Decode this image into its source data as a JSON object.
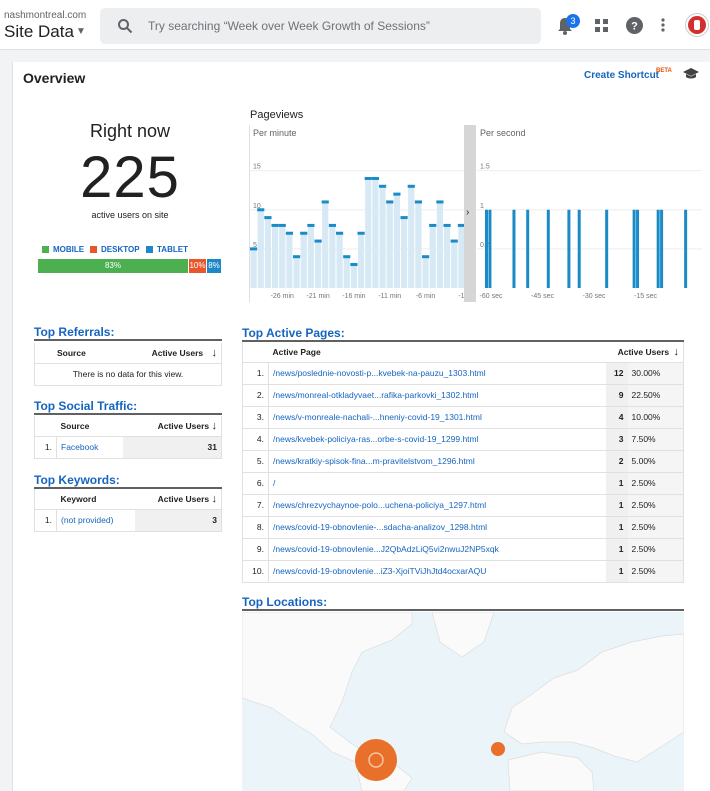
{
  "header": {
    "site_url": "nashmontreal.com",
    "site_name": "Site Data",
    "search_placeholder": "Try searching “Week over Week Growth of Sessions”",
    "notification_count": "3"
  },
  "overview": {
    "title": "Overview",
    "create_shortcut": "Create Shortcut",
    "beta": "BETA"
  },
  "realtime": {
    "right_now": "Right now",
    "active_users": "225",
    "active_label": "active users on site",
    "legend": [
      {
        "label": "MOBILE",
        "color": "#4caf50"
      },
      {
        "label": "DESKTOP",
        "color": "#e8572a"
      },
      {
        "label": "TABLET",
        "color": "#1e88c7"
      }
    ],
    "device_split": [
      {
        "label": "83%",
        "value": 83,
        "color": "#4caf50"
      },
      {
        "label": "10%",
        "value": 10,
        "color": "#e8572a"
      },
      {
        "label": "8%",
        "value": 8,
        "color": "#1e88c7"
      }
    ]
  },
  "pageviews": {
    "title": "Pageviews",
    "per_minute": "Per minute",
    "per_second": "Per second",
    "arrow": "›"
  },
  "chart_data": [
    {
      "type": "bar",
      "title": "Per minute",
      "x": [
        -30,
        -29,
        -28,
        -27,
        -26,
        -25,
        -24,
        -23,
        -22,
        -21,
        -20,
        -19,
        -18,
        -17,
        -16,
        -15,
        -14,
        -13,
        -12,
        -11,
        -10,
        -9,
        -8,
        -7,
        -6,
        -5,
        -4,
        -3,
        -2,
        -1
      ],
      "values": [
        5,
        10,
        9,
        8,
        8,
        7,
        4,
        7,
        8,
        6,
        11,
        8,
        7,
        4,
        3,
        7,
        14,
        14,
        13,
        11,
        12,
        9,
        13,
        11,
        4,
        8,
        11,
        8,
        6,
        8
      ],
      "ylim": [
        0,
        17
      ],
      "yticks": [
        "15",
        "10",
        "5"
      ],
      "xticks": [
        "-26 min",
        "-21 min",
        "-16 min",
        "-11 min",
        "-6 min",
        "-1"
      ]
    },
    {
      "type": "bar",
      "title": "Per second",
      "x": [
        -60,
        -59,
        -52,
        -48,
        -42,
        -36,
        -33,
        -25,
        -17,
        -16,
        -10,
        -9,
        -2
      ],
      "values": [
        1,
        1,
        1,
        1,
        1,
        1,
        1,
        1,
        1,
        1,
        1,
        1,
        1
      ],
      "ylim": [
        0,
        1.7
      ],
      "yticks": [
        "1.5",
        "1",
        "0.5"
      ],
      "xticks": [
        "-60 sec",
        "-45 sec",
        "-30 sec",
        "-15 sec"
      ]
    }
  ],
  "referrals": {
    "title": "Top Referrals:",
    "col_source": "Source",
    "col_users": "Active Users",
    "empty": "There is no data for this view."
  },
  "social": {
    "title": "Top Social Traffic:",
    "col_source": "Source",
    "col_users": "Active Users",
    "rows": [
      {
        "idx": "1.",
        "name": "Facebook",
        "users": "31"
      }
    ]
  },
  "keywords": {
    "title": "Top Keywords:",
    "col_keyword": "Keyword",
    "col_users": "Active Users",
    "rows": [
      {
        "idx": "1.",
        "name": "(not provided)",
        "users": "3"
      }
    ]
  },
  "pages": {
    "title": "Top Active Pages:",
    "col_page": "Active Page",
    "col_users": "Active Users",
    "rows": [
      {
        "idx": "1.",
        "page": "/news/poslednie-novosti-p...kvebek-na-pauzu_1303.html",
        "users": "12",
        "pct": "30.00%"
      },
      {
        "idx": "2.",
        "page": "/news/monreal-otkladyvaet...rafika-parkovki_1302.html",
        "users": "9",
        "pct": "22.50%"
      },
      {
        "idx": "3.",
        "page": "/news/v-monreale-nachali-...hneniy-covid-19_1301.html",
        "users": "4",
        "pct": "10.00%"
      },
      {
        "idx": "4.",
        "page": "/news/kvebek-policiya-ras...orbe-s-covid-19_1299.html",
        "users": "3",
        "pct": "7.50%"
      },
      {
        "idx": "5.",
        "page": "/news/kratkiy-spisok-fina...m-pravitelstvom_1296.html",
        "users": "2",
        "pct": "5.00%"
      },
      {
        "idx": "6.",
        "page": "/",
        "users": "1",
        "pct": "2.50%"
      },
      {
        "idx": "7.",
        "page": "/news/chrezvychaynoe-polo...uchena-policiya_1297.html",
        "users": "1",
        "pct": "2.50%"
      },
      {
        "idx": "8.",
        "page": "/news/covid-19-obnovlenie-...sdacha-analizov_1298.html",
        "users": "1",
        "pct": "2.50%"
      },
      {
        "idx": "9.",
        "page": "/news/covid-19-obnovlenie...J2QbAdzLiQ5vi2nwuJ2NP5xqk",
        "users": "1",
        "pct": "2.50%"
      },
      {
        "idx": "10.",
        "page": "/news/covid-19-obnovlenie...iZ3-XjoiTViJhJtd4ocxarAQU",
        "users": "1",
        "pct": "2.50%"
      }
    ]
  },
  "locations": {
    "title": "Top Locations:"
  }
}
